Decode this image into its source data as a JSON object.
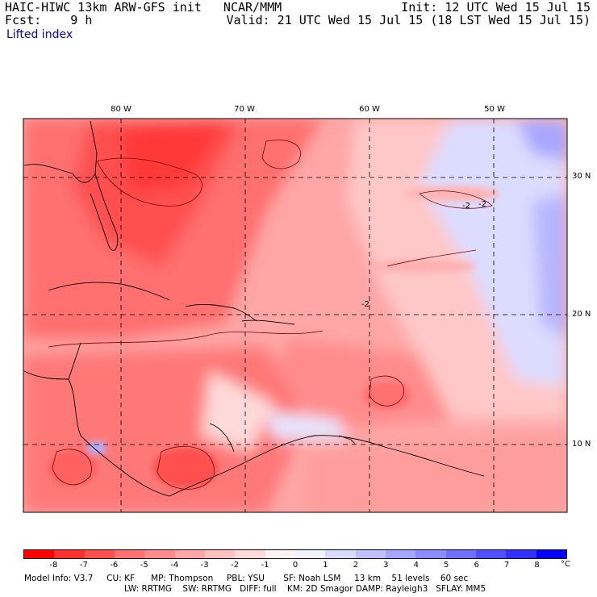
{
  "header": {
    "title": "HAIC-HIWC 13km ARW-GFS init   NCAR/MMM",
    "fcst": "Fcst:    9 h",
    "init": "Init: 12 UTC Wed 15 Jul 15",
    "valid": "Valid: 21 UTC Wed 15 Jul 15 (18 LST Wed 15 Jul 15)",
    "field": "Lifted index"
  },
  "map": {
    "lon_labels": [
      "80 W",
      "70 W",
      "60 W",
      "50 W"
    ],
    "lat_labels": [
      "30 N",
      "20 N",
      "10 N"
    ],
    "contour_labels": [
      "-2",
      "-2",
      "-2"
    ]
  },
  "colorbar": {
    "colors": [
      "#ff0000",
      "#ff3030",
      "#ff5050",
      "#ff7070",
      "#ff8c8c",
      "#ffa6a6",
      "#ffc0c0",
      "#ffdada",
      "#fff2f2",
      "#f2f2ff",
      "#dadaff",
      "#c0c0ff",
      "#a6a6ff",
      "#8c8cff",
      "#7070ff",
      "#5050ff",
      "#3030ff",
      "#0000ff"
    ],
    "labels": [
      "-8",
      "-7",
      "-6",
      "-5",
      "-4",
      "-3",
      "-2",
      "-1",
      "0",
      "1",
      "2",
      "3",
      "4",
      "5",
      "6",
      "7",
      "8"
    ],
    "unit": "°C"
  },
  "footer": {
    "line1": "Model Info: V3.7     CU: KF      MP: Thompson     PBL: YSU       SF: Noah LSM     13 km    51 levels    60 sec",
    "line2": "LW: RRTMG    SW: RRTMG   DIFF: full    KM: 2D Smagor DAMP: Rayleigh3   SFLAY: MM5"
  }
}
